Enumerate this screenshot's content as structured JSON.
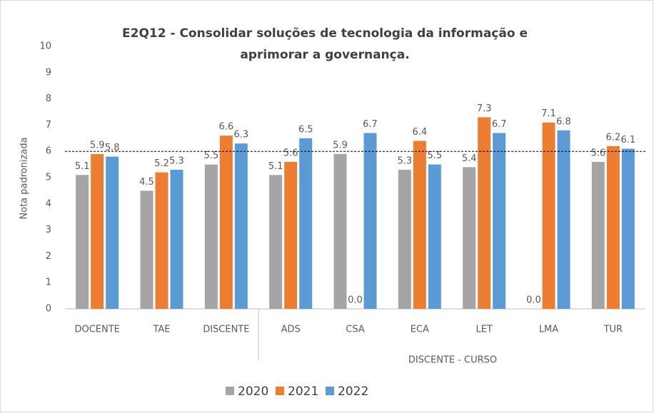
{
  "chart_data": {
    "type": "bar",
    "title": "E2Q12 - Consolidar soluções de tecnologia da informação e aprimorar a governança.",
    "y_label": "Nota padronizada",
    "group_label": "DISCENTE - CURSO",
    "categories": [
      "DOCENTE",
      "TAE",
      "DISCENTE",
      "ADS",
      "CSA",
      "ECA",
      "LET",
      "LMA",
      "TUR"
    ],
    "series": [
      {
        "name": "2020",
        "color": "#a5a5a5",
        "values": [
          5.1,
          4.5,
          5.5,
          5.1,
          5.9,
          5.3,
          5.4,
          0.0,
          5.6
        ],
        "value_labels": [
          "5.1",
          "4.5",
          "5.5",
          "5.1",
          "5.9",
          "5.3",
          "5.4",
          "0.0",
          "5.6"
        ]
      },
      {
        "name": "2021",
        "color": "#ed7d31",
        "values": [
          5.9,
          5.2,
          6.6,
          5.6,
          0.0,
          6.4,
          7.3,
          7.1,
          6.2
        ],
        "value_labels": [
          "5.9",
          "5.2",
          "6.6",
          "5.6",
          "0.0",
          "6.4",
          "7.3",
          "7.1",
          "6.2"
        ]
      },
      {
        "name": "2022",
        "color": "#5b9bd5",
        "values": [
          5.8,
          5.3,
          6.3,
          6.5,
          6.7,
          5.5,
          6.7,
          6.8,
          6.1
        ],
        "value_labels": [
          "5.8",
          "5.3",
          "6.3",
          "6.5",
          "6.7",
          "5.5",
          "6.7",
          "6.8",
          "6.1"
        ]
      }
    ],
    "reference_line": 6,
    "ylim": [
      0,
      10
    ],
    "yticks": [
      0,
      1,
      2,
      3,
      4,
      5,
      6,
      7,
      8,
      9,
      10
    ],
    "grid": false,
    "legend": "bottom"
  }
}
